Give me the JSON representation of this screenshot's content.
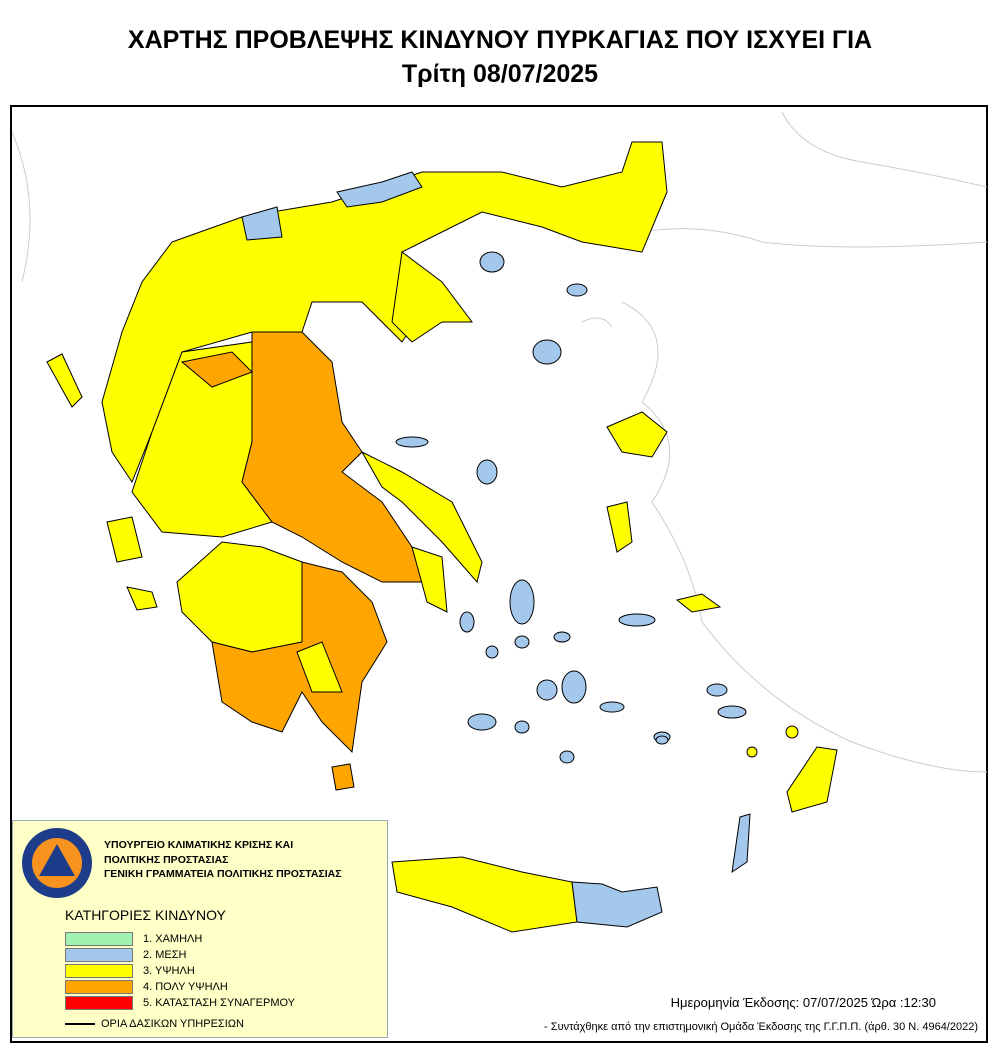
{
  "header": {
    "title": "ΧΑΡΤΗΣ ΠΡΟΒΛΕΨΗΣ ΚΙΝΔΥΝΟΥ ΠΥΡΚΑΓΙΑΣ ΠΟΥ ΙΣΧΥΕΙ ΓΙΑ",
    "date": "Τρίτη 08/07/2025"
  },
  "legend": {
    "org_lines": [
      "ΥΠΟΥΡΓΕΙΟ  ΚΛΙΜΑΤΙΚΗΣ ΚΡΙΣΗΣ ΚΑΙ",
      "ΠΟΛΙΤΙΚΗΣ ΠΡΟΣΤΑΣΙΑΣ",
      "ΓΕΝΙΚΗ ΓΡΑΜΜΑΤΕΙΑ ΠΟΛΙΤΙΚΗΣ ΠΡΟΣΤΑΣΙΑΣ"
    ],
    "logo_text": [
      "ΠΟΛΙΤΙΚΗ ΠΡΟΣΤΑΣΙΑ",
      "ΕΛΛΑΔΑ"
    ],
    "title": "ΚΑΤΗΓΟΡΙΕΣ ΚΙΝΔΥΝΟΥ",
    "categories": [
      {
        "label": "1. ΧΑΜΗΛΗ",
        "color": "#a0f0b0"
      },
      {
        "label": "2. ΜΕΣΗ",
        "color": "#a4c8ec"
      },
      {
        "label": "3. ΥΨΗΛΗ",
        "color": "#ffff00"
      },
      {
        "label": "4. ΠΟΛΥ ΥΨΗΛΗ",
        "color": "#ffa500"
      },
      {
        "label": "5. ΚΑΤΑΣΤΑΣΗ ΣΥΝΑΓΕΡΜΟΥ",
        "color": "#ff0000"
      }
    ],
    "boundary_label": "ΟΡΙΑ ΔΑΣΙΚΩΝ ΥΠΗΡΕΣΙΩΝ"
  },
  "footer": {
    "issue": "Ημερομηνία Έκδοσης: 07/07/2025  Ώρα :12:30",
    "note": "- Συντάχθηκε από την επιστημονική  Ομάδα  Έκδοσης της Γ.Γ.Π.Π. (άρθ. 30 Ν. 4964/2022)"
  }
}
